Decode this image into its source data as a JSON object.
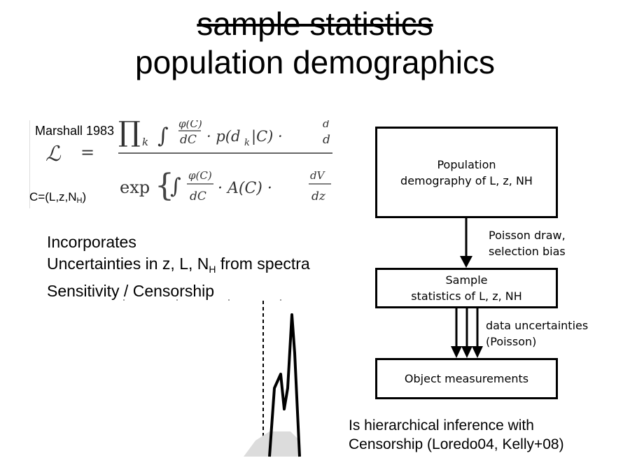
{
  "title": {
    "struck": "sample statistics",
    "main": "population demographics"
  },
  "formula": {
    "citation": "Marshall 1983",
    "c_prefix": "C=(L,z,N",
    "c_sub": "H",
    "c_suffix": ")",
    "lhs": "ℒ",
    "eq": "=",
    "num_prod": "∏",
    "num_sub": "k",
    "num_frac_top": "φ(C)",
    "num_frac_bot": "dC",
    "num_rest": "· p(d",
    "num_rest_sub": "k",
    "num_rest_tail": "|C) ·",
    "num_cut_top": "d",
    "num_cut_bot": "d",
    "den_exp": "exp",
    "den_int": "∫",
    "den_frac_top": "φ(C)",
    "den_frac_bot": "dC",
    "den_mid": "· A(C) ·",
    "den_dv_top": "dV",
    "den_dv_bot": "dz"
  },
  "incorporates": {
    "heading": "Incorporates",
    "line1_prefix": "Uncertainties in z, L, N",
    "line1_sub": "H",
    "line1_suffix": " from spectra",
    "line2": "Sensitivity / Censorship"
  },
  "flow": {
    "box_population": "Population\ndemography of L, z, NH",
    "arrow1_label": "Poisson draw,\nselection bias",
    "box_sample": "Sample\nstatistics of L, z, NH",
    "arrow2_label": "data uncertainties\n(Poisson)",
    "box_measure": "Object measurements"
  },
  "note": {
    "line1": "Is hierarchical inference with",
    "line2": "Censorship (Loredo04, Kelly+08)"
  }
}
